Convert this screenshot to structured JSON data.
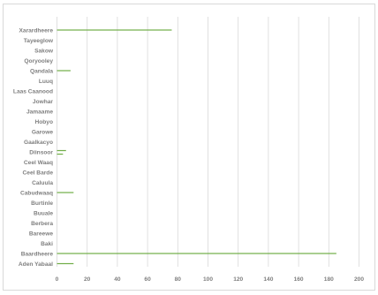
{
  "chart_data": {
    "type": "bar",
    "orientation": "horizontal",
    "categories": [
      "Xarardheere",
      "Tayeeglow",
      "Sakow",
      "Qoryooley",
      "Qandala",
      "Luuq",
      "Laas Caanood",
      "Jowhar",
      "Jamaame",
      "Hobyo",
      "Garowe",
      "Gaalkacyo",
      "Diinsoor",
      "Ceel Waaq",
      "Ceel Barde",
      "Caluula",
      "Cabudwaaq",
      "Burtinle",
      "Buuale",
      "Berbera",
      "Bareewe",
      "Baki",
      "Baardheere",
      "Aden Yabaal"
    ],
    "series": [
      {
        "values": [
          76,
          0,
          0,
          0,
          9,
          0,
          0,
          0,
          0,
          0,
          0,
          0,
          6,
          0,
          0,
          0,
          11,
          0,
          0,
          0,
          0,
          0,
          185,
          11
        ]
      },
      {
        "values": [
          0,
          0,
          0,
          0,
          0,
          0,
          0,
          0,
          0,
          0,
          0,
          0,
          4,
          0,
          0,
          0,
          0,
          0,
          0,
          0,
          0,
          0,
          0,
          0
        ]
      }
    ],
    "xlim": [
      0,
      200
    ],
    "xticks": [
      "0",
      "20",
      "40",
      "60",
      "80",
      "100",
      "120",
      "140",
      "160",
      "180",
      "200"
    ],
    "grid": true,
    "colors": {
      "bar": "#70ad47",
      "grid": "#d9d9d9",
      "text": "#7f7f7f"
    },
    "title": "",
    "xlabel": "",
    "ylabel": ""
  }
}
